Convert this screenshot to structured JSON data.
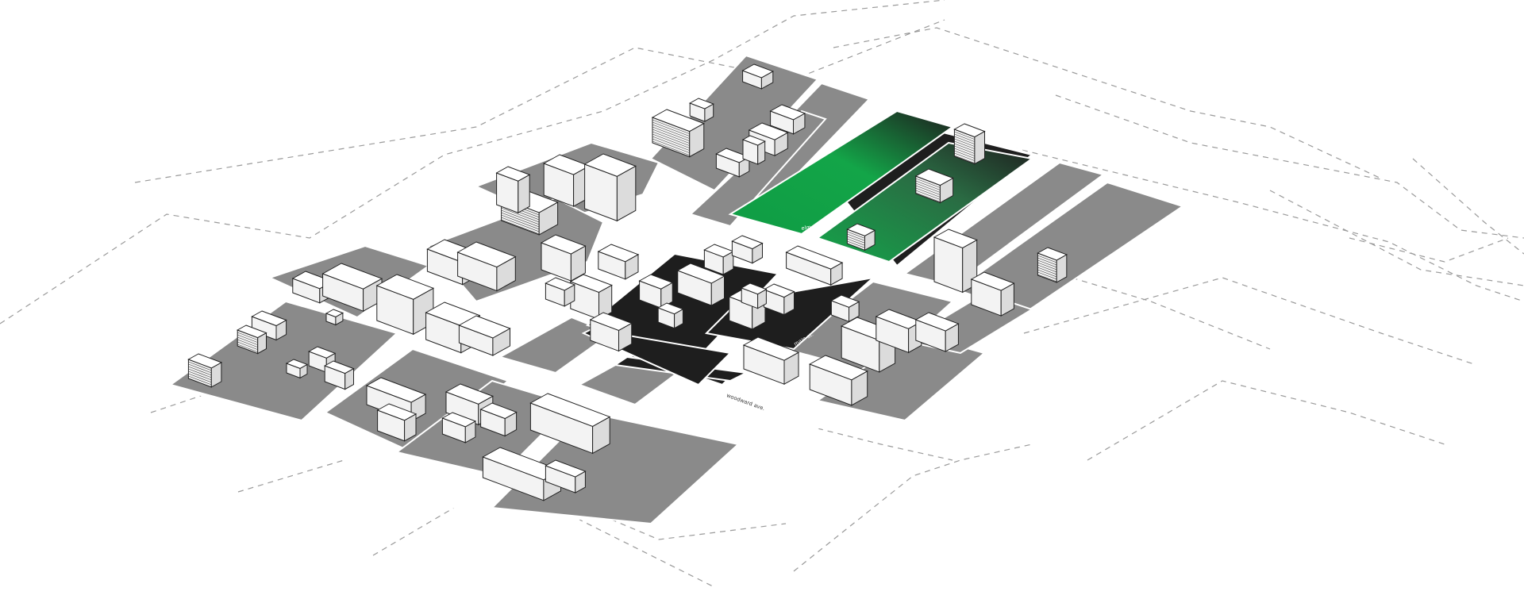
{
  "labels": {
    "street_woodward": "woodward ave.",
    "street_elm": "elm rd.",
    "street_central": "oak st.",
    "street_cross": "main st."
  },
  "colors": {
    "background": "#ffffff",
    "block_grey": "#8a8a8a",
    "block_dark": "#1e1e1e",
    "highlight_green": "#13a548",
    "outline": "#222222",
    "dash_grid": "#9a9a9a"
  }
}
